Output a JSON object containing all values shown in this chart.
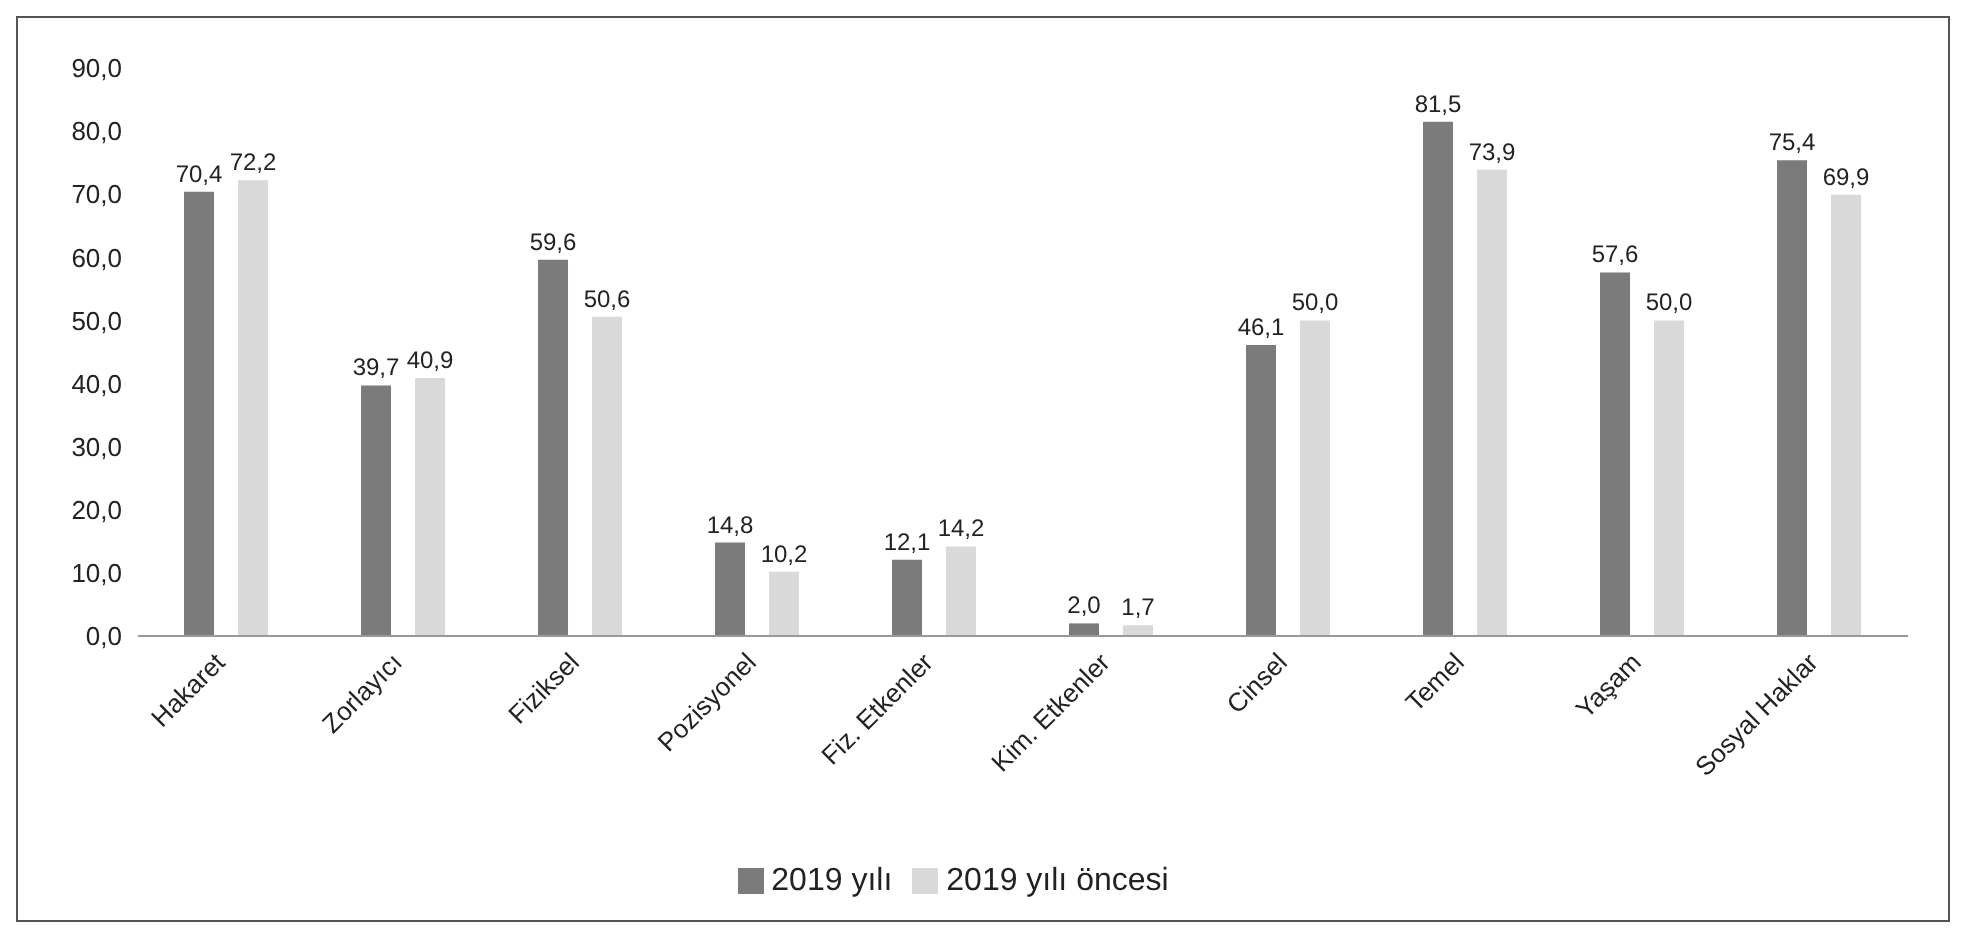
{
  "chart_data": {
    "type": "bar",
    "categories": [
      "Hakaret",
      "Zorlayıcı",
      "Fiziksel",
      "Pozisyonel",
      "Fiz. Etkenler",
      "Kim. Etkenler",
      "Cinsel",
      "Temel",
      "Yaşam",
      "Sosyal Haklar"
    ],
    "series": [
      {
        "name": "2019 yılı",
        "color": "#7b7b7b",
        "values": [
          70.4,
          39.7,
          59.6,
          14.8,
          12.1,
          2.0,
          46.1,
          81.5,
          57.6,
          75.4
        ],
        "value_labels": [
          "70,4",
          "39,7",
          "59,6",
          "14,8",
          "12,1",
          "2,0",
          "46,1",
          "81,5",
          "57,6",
          "75,4"
        ]
      },
      {
        "name": "2019 yılı öncesi",
        "color": "#d9d9d9",
        "values": [
          72.2,
          40.9,
          50.6,
          10.2,
          14.2,
          1.7,
          50.0,
          73.9,
          50.0,
          69.9
        ],
        "value_labels": [
          "72,2",
          "40,9",
          "50,6",
          "10,2",
          "14,2",
          "1,7",
          "50,0",
          "73,9",
          "50,0",
          "69,9"
        ]
      }
    ],
    "ylim": [
      0,
      90
    ],
    "yticks": [
      {
        "value": 0,
        "label": "0,0"
      },
      {
        "value": 10,
        "label": "10,0"
      },
      {
        "value": 20,
        "label": "20,0"
      },
      {
        "value": 30,
        "label": "30,0"
      },
      {
        "value": 40,
        "label": "40,0"
      },
      {
        "value": 50,
        "label": "50,0"
      },
      {
        "value": 60,
        "label": "60,0"
      },
      {
        "value": 70,
        "label": "70,0"
      },
      {
        "value": 80,
        "label": "80,0"
      },
      {
        "value": 90,
        "label": "90,0"
      }
    ],
    "grid": false,
    "legend": "bottom"
  }
}
